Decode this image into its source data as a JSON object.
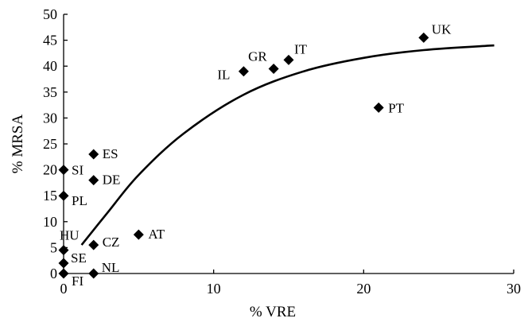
{
  "chart_data": {
    "type": "scatter",
    "title": "",
    "xlabel": "% VRE",
    "ylabel": "% MRSA",
    "xlim": [
      0,
      30
    ],
    "ylim": [
      0,
      50
    ],
    "xticks": [
      0,
      10,
      20,
      30
    ],
    "yticks": [
      0,
      5,
      10,
      15,
      20,
      25,
      30,
      35,
      40,
      45,
      50
    ],
    "grid": false,
    "legend": "none",
    "points": [
      {
        "label": "UK",
        "x": 24,
        "y": 45.5
      },
      {
        "label": "IT",
        "x": 15,
        "y": 41.2
      },
      {
        "label": "GR",
        "x": 14,
        "y": 39.5
      },
      {
        "label": "IL",
        "x": 12,
        "y": 39
      },
      {
        "label": "PT",
        "x": 21,
        "y": 32
      },
      {
        "label": "ES",
        "x": 2,
        "y": 23
      },
      {
        "label": "SI",
        "x": 0,
        "y": 20
      },
      {
        "label": "DE",
        "x": 2,
        "y": 18
      },
      {
        "label": "PL",
        "x": 0,
        "y": 15
      },
      {
        "label": "AT",
        "x": 5,
        "y": 7.5
      },
      {
        "label": "CZ",
        "x": 2,
        "y": 5.5
      },
      {
        "label": "HU",
        "x": 0,
        "y": 4.5
      },
      {
        "label": "SE",
        "x": 0,
        "y": 2
      },
      {
        "label": "NL",
        "x": 2,
        "y": 0
      },
      {
        "label": "FI",
        "x": 0,
        "y": 0
      }
    ],
    "trendline": {
      "type": "curve",
      "points": [
        [
          1.2,
          5.5
        ],
        [
          3,
          12
        ],
        [
          5,
          19
        ],
        [
          8,
          27
        ],
        [
          12,
          34.5
        ],
        [
          16,
          39
        ],
        [
          20,
          41.6
        ],
        [
          24,
          43.1
        ],
        [
          28.7,
          44
        ]
      ]
    }
  }
}
